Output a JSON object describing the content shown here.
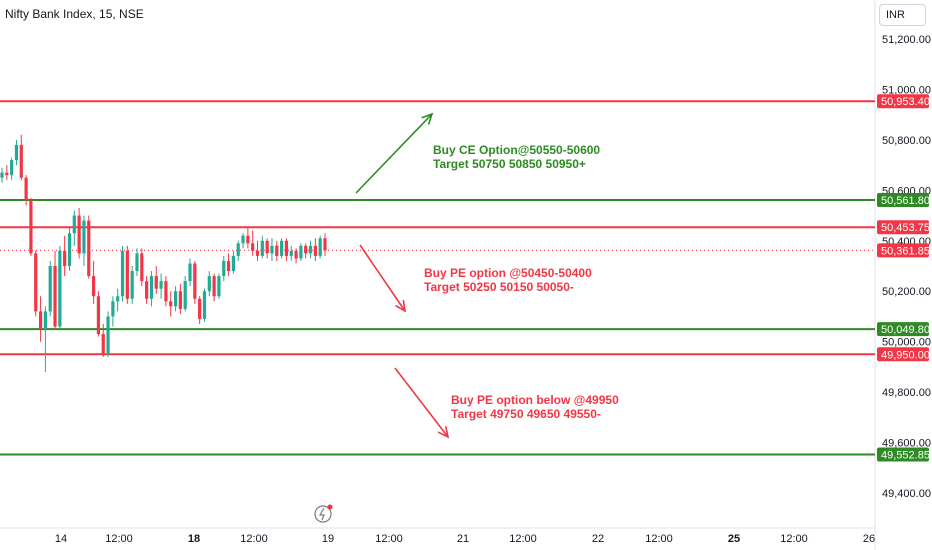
{
  "header": {
    "title": "Nifty Bank Index, 15, NSE",
    "currency": "INR"
  },
  "colors": {
    "up": "#22ab94",
    "down": "#f23645",
    "green_line": "#2e8b23",
    "red_line": "#f23645",
    "last_price": "#f23645"
  },
  "annotations": [
    {
      "id": "ce",
      "color": "green",
      "lines": [
        "Buy CE Option@50550-50600",
        "Target 50750 50850 50950+"
      ]
    },
    {
      "id": "pe1",
      "color": "red",
      "lines": [
        "Buy PE option @50450-50400",
        "Target 50250 50150 50050-"
      ]
    },
    {
      "id": "pe2",
      "color": "red",
      "lines": [
        "Buy PE option below @49950",
        "Target 49750 49650 49550-"
      ]
    }
  ],
  "chart_data": {
    "type": "candlestick",
    "title": "Nifty Bank Index, 15, NSE",
    "y_ticks": [
      51200,
      51000,
      50800,
      50600,
      50400,
      50200,
      50000,
      49800,
      49600,
      49400
    ],
    "y_tick_labels": [
      "51,200.00",
      "51,000.00",
      "50,800.00",
      "50,600.00",
      "50,400.00",
      "50,200.00",
      "50,000.00",
      "49,800.00",
      "49,600.00",
      "49,400.00"
    ],
    "x_tick_labels": [
      "14",
      "12:00",
      "18",
      "12:00",
      "19",
      "12:00",
      "21",
      "12:00",
      "22",
      "12:00",
      "25",
      "12:00",
      "26"
    ],
    "x_tick_bold": [
      "18",
      "25"
    ],
    "horizontal_levels": [
      {
        "value": 50953.4,
        "label": "50,953.40",
        "color": "red"
      },
      {
        "value": 50561.8,
        "label": "50,561.80",
        "color": "green"
      },
      {
        "value": 50453.75,
        "label": "50,453.75",
        "color": "red"
      },
      {
        "value": 50049.8,
        "label": "50,049.80",
        "color": "green"
      },
      {
        "value": 49950.0,
        "label": "49,950.00",
        "color": "red"
      },
      {
        "value": 49552.85,
        "label": "49,552.85",
        "color": "green"
      }
    ],
    "last_price": {
      "value": 50361.85,
      "label": "50,361.85"
    },
    "candles": [
      [
        50650,
        50690,
        50630,
        50670
      ],
      [
        50670,
        50700,
        50640,
        50660
      ],
      [
        50660,
        50730,
        50640,
        50720
      ],
      [
        50720,
        50800,
        50700,
        50780
      ],
      [
        50780,
        50820,
        50640,
        50650
      ],
      [
        50650,
        50660,
        50540,
        50560
      ],
      [
        50560,
        50570,
        50340,
        50350
      ],
      [
        50350,
        50360,
        50100,
        50120
      ],
      [
        50120,
        50180,
        50000,
        50050
      ],
      [
        50050,
        50140,
        49880,
        50120
      ],
      [
        50120,
        50320,
        50100,
        50300
      ],
      [
        50300,
        50360,
        50050,
        50060
      ],
      [
        50060,
        50380,
        50050,
        50360
      ],
      [
        50360,
        50420,
        50260,
        50300
      ],
      [
        50300,
        50450,
        50280,
        50430
      ],
      [
        50430,
        50520,
        50380,
        50500
      ],
      [
        50500,
        50530,
        50330,
        50350
      ],
      [
        50350,
        50500,
        50300,
        50480
      ],
      [
        50480,
        50500,
        50250,
        50260
      ],
      [
        50260,
        50320,
        50150,
        50180
      ],
      [
        50180,
        50200,
        50020,
        50030
      ],
      [
        50030,
        50070,
        49940,
        49950
      ],
      [
        49950,
        50120,
        49940,
        50100
      ],
      [
        50100,
        50180,
        50060,
        50160
      ],
      [
        50160,
        50210,
        50120,
        50180
      ],
      [
        50180,
        50380,
        50160,
        50360
      ],
      [
        50360,
        50380,
        50150,
        50170
      ],
      [
        50170,
        50300,
        50150,
        50280
      ],
      [
        50280,
        50370,
        50260,
        50350
      ],
      [
        50350,
        50370,
        50220,
        50240
      ],
      [
        50240,
        50260,
        50150,
        50170
      ],
      [
        50170,
        50280,
        50140,
        50260
      ],
      [
        50260,
        50300,
        50190,
        50210
      ],
      [
        50210,
        50270,
        50170,
        50240
      ],
      [
        50240,
        50260,
        50140,
        50160
      ],
      [
        50160,
        50200,
        50100,
        50140
      ],
      [
        50140,
        50220,
        50120,
        50200
      ],
      [
        50200,
        50230,
        50110,
        50130
      ],
      [
        50130,
        50260,
        50120,
        50240
      ],
      [
        50240,
        50330,
        50220,
        50310
      ],
      [
        50310,
        50320,
        50150,
        50170
      ],
      [
        50170,
        50180,
        50070,
        50090
      ],
      [
        50090,
        50210,
        50080,
        50200
      ],
      [
        50200,
        50280,
        50180,
        50260
      ],
      [
        50260,
        50270,
        50160,
        50180
      ],
      [
        50180,
        50270,
        50170,
        50260
      ],
      [
        50260,
        50340,
        50240,
        50320
      ],
      [
        50320,
        50350,
        50260,
        50280
      ],
      [
        50280,
        50360,
        50270,
        50340
      ],
      [
        50340,
        50400,
        50320,
        50390
      ],
      [
        50390,
        50430,
        50370,
        50420
      ],
      [
        50420,
        50450,
        50370,
        50390
      ],
      [
        50390,
        50440,
        50340,
        50360
      ],
      [
        50360,
        50400,
        50320,
        50340
      ],
      [
        50340,
        50420,
        50330,
        50400
      ],
      [
        50400,
        50410,
        50330,
        50350
      ],
      [
        50350,
        50410,
        50320,
        50380
      ],
      [
        50380,
        50400,
        50320,
        50340
      ],
      [
        50340,
        50410,
        50330,
        50400
      ],
      [
        50400,
        50410,
        50320,
        50340
      ],
      [
        50340,
        50380,
        50320,
        50360
      ],
      [
        50360,
        50370,
        50310,
        50330
      ],
      [
        50330,
        50390,
        50320,
        50380
      ],
      [
        50380,
        50390,
        50330,
        50350
      ],
      [
        50350,
        50400,
        50330,
        50380
      ],
      [
        50380,
        50410,
        50320,
        50340
      ],
      [
        50340,
        50420,
        50330,
        50410
      ],
      [
        50410,
        50430,
        50340,
        50362
      ]
    ]
  }
}
